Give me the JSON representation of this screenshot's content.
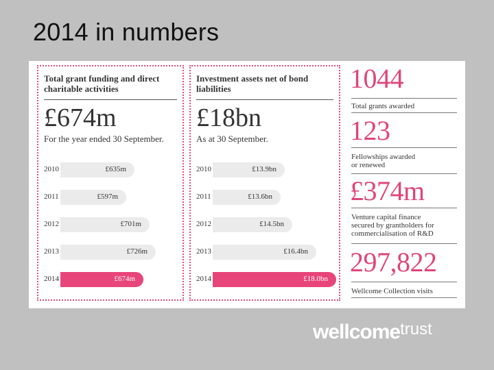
{
  "slide": {
    "title": "2014 in numbers"
  },
  "panels": [
    {
      "heading": "Total grant funding and direct charitable activities",
      "big": "£674m",
      "sub": "For the year ended 30 September.",
      "bars": [
        {
          "year": "2010",
          "label": "£635m",
          "value": 635
        },
        {
          "year": "2011",
          "label": "£597m",
          "value": 597
        },
        {
          "year": "2012",
          "label": "£701m",
          "value": 701
        },
        {
          "year": "2013",
          "label": "£726m",
          "value": 726
        },
        {
          "year": "2014",
          "label": "£674m",
          "value": 674
        }
      ]
    },
    {
      "heading": "Investment assets net of bond liabilities",
      "big": "£18bn",
      "sub": "As at 30 September.",
      "bars": [
        {
          "year": "2010",
          "label": "£13.9bn",
          "value": 13.9
        },
        {
          "year": "2011",
          "label": "£13.6bn",
          "value": 13.6
        },
        {
          "year": "2012",
          "label": "£14.5bn",
          "value": 14.5
        },
        {
          "year": "2013",
          "label": "£16.4bn",
          "value": 16.4
        },
        {
          "year": "2014",
          "label": "£18.0bn",
          "value": 18.0
        }
      ]
    }
  ],
  "stats": [
    {
      "number": "1044",
      "label": "Total grants awarded"
    },
    {
      "number": "123",
      "label": "Fellowships awarded or renewed"
    },
    {
      "number": "£374m",
      "label": "Venture capital finance secured by grantholders for commercialisation of R&D"
    },
    {
      "number": "297,822",
      "label": "Wellcome Collection visits"
    }
  ],
  "logo": {
    "bold": "wellcome",
    "light": "trust"
  },
  "colors": {
    "accent": "#e8457a",
    "bar": "#ebebeb",
    "background": "#c0c0c0"
  }
}
